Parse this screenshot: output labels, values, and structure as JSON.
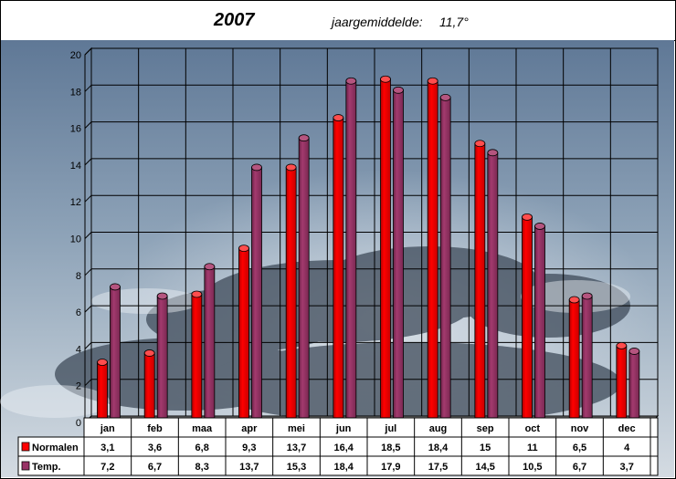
{
  "header": {
    "title": "2007",
    "average_label": "jaargemiddelde:",
    "average_value": "11,7°"
  },
  "chart_data": {
    "type": "bar",
    "title": "2007",
    "categories": [
      "jan",
      "feb",
      "maa",
      "apr",
      "mei",
      "jun",
      "jul",
      "aug",
      "sep",
      "oct",
      "nov",
      "dec"
    ],
    "series": [
      {
        "name": "Normalen",
        "color": "#ff0000",
        "values": [
          3.1,
          3.6,
          6.8,
          9.3,
          13.7,
          16.4,
          18.5,
          18.4,
          15,
          11,
          6.5,
          4
        ],
        "labels": [
          "3,1",
          "3,6",
          "6,8",
          "9,3",
          "13,7",
          "16,4",
          "18,5",
          "18,4",
          "15",
          "11",
          "6,5",
          "4"
        ]
      },
      {
        "name": "Temp.",
        "color": "#993366",
        "values": [
          7.2,
          6.7,
          8.3,
          13.7,
          15.3,
          18.4,
          17.9,
          17.5,
          14.5,
          10.5,
          6.7,
          3.7
        ],
        "labels": [
          "7,2",
          "6,7",
          "8,3",
          "13,7",
          "15,3",
          "18,4",
          "17,9",
          "17,5",
          "14,5",
          "10,5",
          "6,7",
          "3,7"
        ]
      }
    ],
    "ylim": [
      0,
      20
    ],
    "yticks": [
      "0",
      "2",
      "4",
      "6",
      "8",
      "10",
      "12",
      "14",
      "16",
      "18",
      "20"
    ],
    "grid": true,
    "legend": "data-table-left",
    "background": "sky-with-clouds"
  }
}
